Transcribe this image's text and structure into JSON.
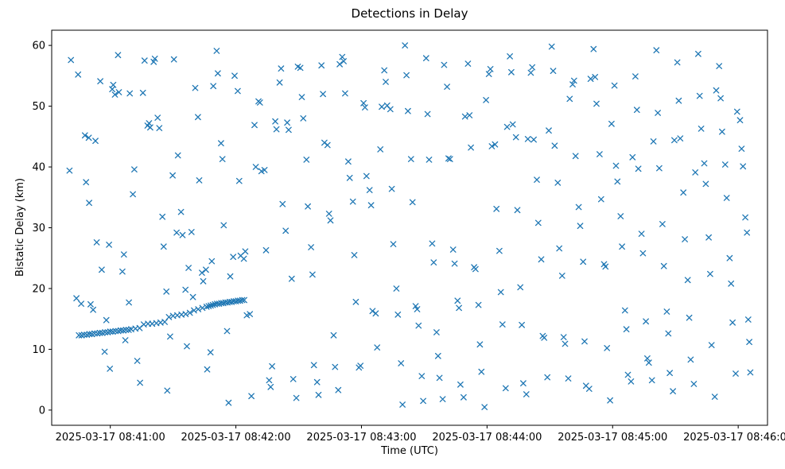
{
  "chart_data": {
    "type": "scatter",
    "title": "Detections in Delay",
    "xlabel": "Time (UTC)",
    "ylabel": "Bistatic Delay (km)",
    "marker": "x",
    "marker_color": "#1f77b4",
    "x_unit": "seconds after 2025-03-17 08:40:00 UTC",
    "xlim": [
      32,
      374
    ],
    "ylim": [
      -2.5,
      62.5
    ],
    "x_ticks": [
      60,
      120,
      180,
      240,
      300,
      360
    ],
    "x_tick_labels": [
      "2025-03-17 08:41:00",
      "2025-03-17 08:42:00",
      "2025-03-17 08:43:00",
      "2025-03-17 08:44:00",
      "2025-03-17 08:45:00",
      "2025-03-17 08:46:00"
    ],
    "y_ticks": [
      0,
      10,
      20,
      30,
      40,
      50,
      60
    ],
    "points": [
      [
        40.5,
        39.4
      ],
      [
        41.2,
        57.6
      ],
      [
        43.8,
        18.4
      ],
      [
        44.6,
        55.2
      ],
      [
        46.1,
        17.5
      ],
      [
        47.9,
        45.2
      ],
      [
        48.4,
        37.5
      ],
      [
        49.7,
        44.8
      ],
      [
        49.9,
        34.1
      ],
      [
        50.6,
        17.4
      ],
      [
        51.8,
        16.5
      ],
      [
        52.9,
        44.3
      ],
      [
        53.5,
        27.6
      ],
      [
        55.2,
        54.1
      ],
      [
        55.9,
        23.1
      ],
      [
        57.3,
        9.6
      ],
      [
        58.1,
        14.8
      ],
      [
        59.4,
        27.2
      ],
      [
        59.8,
        6.8
      ],
      [
        60.9,
        52.8
      ],
      [
        61.4,
        53.5
      ],
      [
        62.2,
        51.9
      ],
      [
        63.7,
        58.4
      ],
      [
        64.1,
        52.3
      ],
      [
        65.8,
        22.8
      ],
      [
        66.5,
        25.6
      ],
      [
        67.2,
        11.5
      ],
      [
        68.9,
        17.7
      ],
      [
        69.3,
        52.1
      ],
      [
        70.8,
        35.5
      ],
      [
        71.5,
        39.6
      ],
      [
        72.9,
        8.1
      ],
      [
        74.2,
        4.5
      ],
      [
        75.6,
        52.2
      ],
      [
        76.4,
        57.5
      ],
      [
        77.8,
        46.8
      ],
      [
        78.5,
        47.2
      ],
      [
        79.1,
        46.5
      ],
      [
        80.7,
        57.3
      ],
      [
        81.3,
        57.8
      ],
      [
        82.6,
        48.1
      ],
      [
        83.4,
        46.4
      ],
      [
        84.9,
        31.8
      ],
      [
        85.5,
        26.9
      ],
      [
        86.8,
        19.5
      ],
      [
        87.2,
        3.2
      ],
      [
        88.6,
        12.1
      ],
      [
        89.8,
        38.6
      ],
      [
        90.4,
        57.7
      ],
      [
        91.7,
        29.2
      ],
      [
        92.3,
        41.9
      ],
      [
        93.8,
        32.6
      ],
      [
        94.5,
        28.8
      ],
      [
        95.9,
        19.8
      ],
      [
        96.6,
        10.5
      ],
      [
        97.4,
        23.4
      ],
      [
        98.8,
        29.3
      ],
      [
        99.5,
        18.6
      ],
      [
        100.6,
        53.0
      ],
      [
        101.9,
        48.2
      ],
      [
        102.5,
        37.8
      ],
      [
        103.8,
        22.6
      ],
      [
        104.4,
        21.2
      ],
      [
        105.7,
        23.1
      ],
      [
        106.3,
        6.7
      ],
      [
        107.9,
        9.5
      ],
      [
        108.5,
        24.5
      ],
      [
        109.2,
        53.3
      ],
      [
        110.8,
        59.1
      ],
      [
        111.4,
        55.4
      ],
      [
        112.9,
        43.9
      ],
      [
        113.6,
        41.3
      ],
      [
        114.2,
        30.4
      ],
      [
        115.8,
        13.0
      ],
      [
        116.5,
        1.2
      ],
      [
        117.3,
        22.0
      ],
      [
        118.7,
        25.2
      ],
      [
        119.4,
        55.0
      ],
      [
        120.9,
        52.5
      ],
      [
        121.6,
        37.7
      ],
      [
        122.3,
        25.4
      ],
      [
        123.8,
        24.9
      ],
      [
        124.5,
        26.1
      ],
      [
        125.2,
        15.6
      ],
      [
        126.7,
        15.8
      ],
      [
        127.4,
        2.3
      ],
      [
        128.9,
        46.9
      ],
      [
        129.5,
        40.0
      ],
      [
        130.8,
        50.8
      ],
      [
        131.5,
        50.6
      ],
      [
        132.2,
        39.3
      ],
      [
        133.7,
        39.5
      ],
      [
        134.4,
        26.3
      ],
      [
        135.9,
        4.9
      ],
      [
        136.6,
        3.8
      ],
      [
        137.3,
        7.2
      ],
      [
        138.8,
        47.5
      ],
      [
        139.4,
        46.2
      ],
      [
        140.9,
        53.9
      ],
      [
        141.6,
        56.2
      ],
      [
        142.3,
        33.9
      ],
      [
        143.8,
        29.5
      ],
      [
        144.5,
        47.3
      ],
      [
        145.2,
        46.1
      ],
      [
        146.7,
        21.6
      ],
      [
        147.4,
        5.1
      ],
      [
        148.9,
        2.0
      ],
      [
        149.6,
        56.5
      ],
      [
        150.8,
        56.3
      ],
      [
        151.5,
        51.5
      ],
      [
        152.2,
        48.0
      ],
      [
        153.7,
        41.2
      ],
      [
        154.4,
        33.5
      ],
      [
        155.9,
        26.8
      ],
      [
        156.6,
        22.3
      ],
      [
        157.3,
        7.4
      ],
      [
        158.8,
        4.6
      ],
      [
        159.5,
        2.5
      ],
      [
        160.9,
        56.7
      ],
      [
        161.6,
        52.0
      ],
      [
        162.3,
        44.0
      ],
      [
        163.8,
        43.6
      ],
      [
        164.5,
        32.3
      ],
      [
        165.2,
        31.2
      ],
      [
        166.7,
        12.3
      ],
      [
        167.4,
        7.1
      ],
      [
        168.9,
        3.3
      ],
      [
        169.6,
        56.9
      ],
      [
        170.8,
        58.1
      ],
      [
        171.5,
        57.4
      ],
      [
        172.2,
        52.1
      ],
      [
        173.7,
        40.9
      ],
      [
        174.4,
        38.2
      ],
      [
        175.9,
        34.3
      ],
      [
        176.6,
        25.5
      ],
      [
        177.3,
        17.8
      ],
      [
        178.8,
        7.0
      ],
      [
        179.5,
        7.3
      ],
      [
        181.0,
        50.5
      ],
      [
        181.7,
        49.8
      ],
      [
        182.4,
        38.5
      ],
      [
        183.9,
        36.2
      ],
      [
        184.6,
        33.7
      ],
      [
        185.3,
        16.3
      ],
      [
        186.8,
        15.9
      ],
      [
        187.5,
        10.3
      ],
      [
        189.0,
        42.9
      ],
      [
        189.7,
        49.9
      ],
      [
        190.9,
        55.9
      ],
      [
        191.6,
        54.0
      ],
      [
        192.3,
        50.1
      ],
      [
        193.8,
        49.5
      ],
      [
        194.5,
        36.4
      ],
      [
        195.2,
        27.3
      ],
      [
        196.7,
        20.0
      ],
      [
        197.4,
        15.7
      ],
      [
        198.9,
        7.7
      ],
      [
        199.6,
        0.9
      ],
      [
        200.8,
        60.0
      ],
      [
        201.5,
        55.1
      ],
      [
        202.2,
        49.2
      ],
      [
        203.7,
        41.3
      ],
      [
        204.4,
        34.2
      ],
      [
        205.9,
        17.1
      ],
      [
        206.6,
        16.6
      ],
      [
        207.3,
        13.9
      ],
      [
        208.8,
        5.6
      ],
      [
        209.5,
        1.5
      ],
      [
        210.9,
        57.9
      ],
      [
        211.6,
        48.7
      ],
      [
        212.3,
        41.2
      ],
      [
        213.8,
        27.4
      ],
      [
        214.5,
        24.3
      ],
      [
        215.9,
        12.8
      ],
      [
        216.6,
        8.9
      ],
      [
        217.3,
        5.3
      ],
      [
        218.8,
        1.8
      ],
      [
        219.5,
        56.8
      ],
      [
        220.9,
        53.2
      ],
      [
        221.6,
        41.4
      ],
      [
        222.3,
        41.3
      ],
      [
        223.8,
        26.4
      ],
      [
        224.5,
        24.1
      ],
      [
        225.9,
        18.0
      ],
      [
        226.6,
        16.8
      ],
      [
        227.3,
        4.2
      ],
      [
        228.8,
        2.1
      ],
      [
        229.5,
        48.3
      ],
      [
        230.9,
        57.0
      ],
      [
        231.6,
        48.5
      ],
      [
        232.3,
        43.2
      ],
      [
        233.8,
        23.5
      ],
      [
        234.5,
        23.2
      ],
      [
        235.9,
        17.3
      ],
      [
        236.6,
        10.8
      ],
      [
        237.3,
        6.3
      ],
      [
        238.8,
        0.5
      ],
      [
        239.5,
        51.0
      ],
      [
        240.9,
        55.3
      ],
      [
        241.6,
        56.1
      ],
      [
        242.3,
        43.4
      ],
      [
        243.8,
        43.7
      ],
      [
        244.5,
        33.1
      ],
      [
        245.9,
        26.2
      ],
      [
        246.6,
        19.4
      ],
      [
        247.4,
        14.1
      ],
      [
        248.9,
        3.6
      ],
      [
        249.6,
        46.6
      ],
      [
        250.9,
        58.2
      ],
      [
        251.6,
        55.6
      ],
      [
        252.3,
        47.0
      ],
      [
        253.8,
        44.9
      ],
      [
        254.5,
        32.9
      ],
      [
        255.9,
        20.2
      ],
      [
        256.6,
        14.0
      ],
      [
        257.3,
        4.4
      ],
      [
        258.8,
        2.6
      ],
      [
        259.5,
        44.6
      ],
      [
        260.9,
        55.5
      ],
      [
        261.6,
        56.4
      ],
      [
        262.3,
        44.5
      ],
      [
        263.8,
        37.9
      ],
      [
        264.5,
        30.8
      ],
      [
        265.9,
        24.8
      ],
      [
        266.6,
        12.2
      ],
      [
        267.3,
        11.9
      ],
      [
        268.8,
        5.4
      ],
      [
        269.5,
        46.0
      ],
      [
        270.9,
        59.8
      ],
      [
        271.6,
        55.8
      ],
      [
        272.3,
        43.5
      ],
      [
        273.8,
        37.4
      ],
      [
        274.5,
        26.6
      ],
      [
        275.9,
        22.1
      ],
      [
        276.6,
        12.0
      ],
      [
        277.3,
        10.9
      ],
      [
        278.8,
        5.2
      ],
      [
        279.5,
        51.2
      ],
      [
        280.9,
        53.6
      ],
      [
        281.6,
        54.2
      ],
      [
        282.3,
        41.8
      ],
      [
        283.8,
        33.4
      ],
      [
        284.5,
        30.3
      ],
      [
        285.9,
        24.4
      ],
      [
        286.6,
        11.3
      ],
      [
        287.3,
        4.0
      ],
      [
        288.8,
        3.5
      ],
      [
        289.5,
        54.5
      ],
      [
        290.9,
        59.4
      ],
      [
        291.6,
        54.8
      ],
      [
        292.3,
        50.4
      ],
      [
        293.8,
        42.1
      ],
      [
        294.5,
        34.7
      ],
      [
        295.9,
        24.0
      ],
      [
        296.6,
        23.6
      ],
      [
        297.3,
        10.2
      ],
      [
        298.8,
        1.6
      ],
      [
        299.5,
        47.1
      ],
      [
        300.9,
        53.4
      ],
      [
        301.6,
        40.2
      ],
      [
        302.3,
        37.6
      ],
      [
        303.8,
        31.9
      ],
      [
        304.5,
        26.9
      ],
      [
        305.9,
        16.4
      ],
      [
        306.6,
        13.3
      ],
      [
        307.3,
        5.8
      ],
      [
        308.8,
        4.7
      ],
      [
        309.5,
        41.6
      ],
      [
        310.9,
        54.9
      ],
      [
        311.6,
        49.4
      ],
      [
        312.3,
        39.7
      ],
      [
        313.8,
        29.0
      ],
      [
        314.5,
        25.8
      ],
      [
        315.9,
        14.6
      ],
      [
        316.6,
        8.5
      ],
      [
        317.3,
        7.8
      ],
      [
        318.8,
        4.9
      ],
      [
        319.5,
        44.2
      ],
      [
        320.9,
        59.2
      ],
      [
        321.6,
        48.9
      ],
      [
        322.3,
        39.8
      ],
      [
        323.8,
        30.6
      ],
      [
        324.5,
        23.7
      ],
      [
        325.9,
        16.2
      ],
      [
        326.6,
        12.6
      ],
      [
        327.3,
        6.1
      ],
      [
        328.8,
        3.1
      ],
      [
        329.5,
        44.4
      ],
      [
        330.9,
        57.2
      ],
      [
        331.6,
        50.9
      ],
      [
        332.3,
        44.7
      ],
      [
        333.8,
        35.8
      ],
      [
        334.5,
        28.1
      ],
      [
        335.9,
        21.4
      ],
      [
        336.6,
        15.2
      ],
      [
        337.3,
        8.3
      ],
      [
        338.8,
        4.3
      ],
      [
        339.5,
        39.1
      ],
      [
        340.9,
        58.6
      ],
      [
        341.6,
        51.7
      ],
      [
        342.3,
        46.3
      ],
      [
        343.8,
        40.6
      ],
      [
        344.5,
        37.2
      ],
      [
        345.9,
        28.4
      ],
      [
        346.6,
        22.4
      ],
      [
        347.3,
        10.7
      ],
      [
        348.8,
        2.2
      ],
      [
        349.5,
        52.6
      ],
      [
        350.9,
        56.6
      ],
      [
        351.6,
        51.3
      ],
      [
        352.3,
        45.8
      ],
      [
        353.8,
        40.4
      ],
      [
        354.5,
        34.9
      ],
      [
        355.9,
        25.0
      ],
      [
        356.6,
        20.8
      ],
      [
        357.3,
        14.4
      ],
      [
        358.8,
        6.0
      ],
      [
        359.5,
        49.1
      ],
      [
        360.9,
        47.7
      ],
      [
        361.6,
        43.0
      ],
      [
        362.3,
        40.1
      ],
      [
        363.4,
        31.7
      ],
      [
        364.2,
        29.2
      ],
      [
        364.8,
        14.9
      ],
      [
        365.3,
        11.2
      ],
      [
        365.8,
        6.2
      ],
      [
        45.0,
        12.3
      ],
      [
        46.3,
        12.3
      ],
      [
        47.5,
        12.4
      ],
      [
        48.8,
        12.4
      ],
      [
        50.0,
        12.5
      ],
      [
        51.2,
        12.5
      ],
      [
        52.5,
        12.6
      ],
      [
        53.8,
        12.6
      ],
      [
        55.0,
        12.7
      ],
      [
        56.2,
        12.7
      ],
      [
        57.5,
        12.8
      ],
      [
        58.8,
        12.8
      ],
      [
        60.0,
        12.9
      ],
      [
        61.2,
        12.9
      ],
      [
        62.5,
        13.0
      ],
      [
        63.8,
        13.0
      ],
      [
        65.0,
        13.1
      ],
      [
        66.2,
        13.1
      ],
      [
        67.5,
        13.2
      ],
      [
        68.8,
        13.2
      ],
      [
        70.0,
        13.3
      ],
      [
        72.0,
        13.4
      ],
      [
        74.0,
        13.5
      ],
      [
        76.0,
        14.1
      ],
      [
        78.0,
        14.2
      ],
      [
        80.0,
        14.2
      ],
      [
        82.0,
        14.3
      ],
      [
        84.0,
        14.4
      ],
      [
        86.0,
        14.5
      ],
      [
        88.0,
        15.3
      ],
      [
        90.0,
        15.5
      ],
      [
        92.0,
        15.6
      ],
      [
        94.0,
        15.7
      ],
      [
        96.0,
        15.8
      ],
      [
        98.0,
        16.0
      ],
      [
        100.0,
        16.4
      ],
      [
        102.0,
        16.6
      ],
      [
        104.0,
        16.8
      ],
      [
        106.0,
        17.0
      ],
      [
        107.0,
        17.1
      ],
      [
        108.0,
        17.2
      ],
      [
        109.0,
        17.3
      ],
      [
        110.0,
        17.4
      ],
      [
        111.0,
        17.5
      ],
      [
        112.0,
        17.5
      ],
      [
        113.0,
        17.6
      ],
      [
        114.0,
        17.6
      ],
      [
        115.0,
        17.7
      ],
      [
        116.0,
        17.7
      ],
      [
        117.0,
        17.8
      ],
      [
        118.0,
        17.8
      ],
      [
        119.0,
        17.9
      ],
      [
        120.0,
        17.9
      ],
      [
        121.0,
        18.0
      ],
      [
        122.0,
        18.0
      ],
      [
        123.0,
        18.1
      ],
      [
        124.0,
        18.1
      ]
    ]
  }
}
